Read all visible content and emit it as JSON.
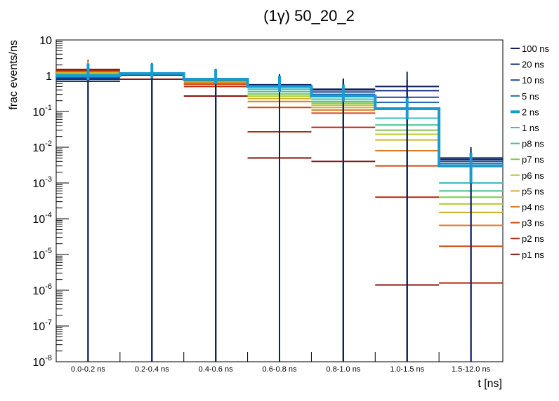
{
  "chart_data": {
    "type": "step",
    "title": "(1γ) 50_20_2",
    "xlabel": "t [ns]",
    "ylabel": "frac events/ns",
    "yscale": "log",
    "ylim": [
      1e-08,
      10
    ],
    "grid": false,
    "legend_position": "right",
    "categories": [
      "0.0-0.2 ns",
      "0.2-0.4 ns",
      "0.4-0.6 ns",
      "0.6-0.8 ns",
      "0.8-1.0 ns",
      "1.0-1.5 ns",
      "1.5-12.0 ns"
    ],
    "ytick_labels": [
      {
        "base": "10",
        "exp": "-8",
        "value": 1e-08
      },
      {
        "base": "10",
        "exp": "-7",
        "value": 1e-07
      },
      {
        "base": "10",
        "exp": "-6",
        "value": 1e-06
      },
      {
        "base": "10",
        "exp": "-5",
        "value": 1e-05
      },
      {
        "base": "10",
        "exp": "-4",
        "value": 0.0001
      },
      {
        "base": "10",
        "exp": "-3",
        "value": 0.001
      },
      {
        "base": "10",
        "exp": "-2",
        "value": 0.01
      },
      {
        "base": "10",
        "exp": "-1",
        "value": 0.1
      },
      {
        "base": "1",
        "exp": "",
        "value": 1
      },
      {
        "base": "10",
        "exp": "",
        "value": 10
      }
    ],
    "series": [
      {
        "name": "100 ns",
        "color": "#0d1f5c",
        "highlight": false,
        "values": [
          0.7,
          1.05,
          0.75,
          0.55,
          0.42,
          0.5,
          0.005
        ],
        "err_lo": [
          0.7,
          1.05,
          0.75,
          0.55,
          0.42,
          0.5,
          0.005
        ],
        "err_hi": [
          0.7,
          1.05,
          0.75,
          0.55,
          0.42,
          0.8,
          0.005
        ]
      },
      {
        "name": "20 ns",
        "color": "#0f2d7a",
        "highlight": false,
        "values": [
          0.8,
          1.08,
          0.76,
          0.55,
          0.4,
          0.38,
          0.0045
        ],
        "err_lo": [
          0.8,
          1.08,
          0.76,
          0.55,
          0.4,
          0.38,
          0.0045
        ],
        "err_hi": [
          0.8,
          1.08,
          0.76,
          0.55,
          0.4,
          0.38,
          0.0045
        ]
      },
      {
        "name": "10 ns",
        "color": "#1a4d96",
        "highlight": false,
        "values": [
          0.85,
          1.1,
          0.78,
          0.56,
          0.35,
          0.25,
          0.004
        ],
        "err_lo": [
          0.85,
          1.1,
          0.78,
          0.56,
          0.35,
          0.25,
          0.004
        ],
        "err_hi": [
          0.85,
          1.1,
          0.78,
          0.56,
          0.35,
          0.25,
          0.004
        ]
      },
      {
        "name": "5 ns",
        "color": "#1f6cb3",
        "highlight": false,
        "values": [
          0.9,
          1.12,
          0.78,
          0.5,
          0.3,
          0.18,
          0.0035
        ],
        "err_lo": [
          0.9,
          1.12,
          0.78,
          0.5,
          0.3,
          0.18,
          0.0035
        ],
        "err_hi": [
          0.9,
          1.12,
          0.78,
          0.5,
          0.3,
          0.18,
          0.0035
        ]
      },
      {
        "name": "2 ns",
        "color": "#1a9ad0",
        "highlight": true,
        "values": [
          1.0,
          1.15,
          0.8,
          0.5,
          0.27,
          0.12,
          0.003
        ],
        "err_lo": [
          0.25,
          0.3,
          0.22,
          0.15,
          0.08,
          0.06,
          0.002
        ],
        "err_hi": [
          1.2,
          1.0,
          0.7,
          0.5,
          0.3,
          0.12,
          0.004
        ]
      },
      {
        "name": "1 ns",
        "color": "#33c0c0",
        "highlight": false,
        "values": [
          1.05,
          1.15,
          0.78,
          0.42,
          0.22,
          0.065,
          0.001
        ],
        "err_lo": [
          1.05,
          1.15,
          0.78,
          0.42,
          0.22,
          0.065,
          0.001
        ],
        "err_hi": [
          1.05,
          1.15,
          0.78,
          0.42,
          0.22,
          0.065,
          0.001
        ]
      },
      {
        "name": "p8 ns",
        "color": "#3cc48e",
        "highlight": false,
        "values": [
          1.08,
          1.15,
          0.76,
          0.36,
          0.19,
          0.042,
          0.0006
        ],
        "err_lo": [
          1.08,
          1.15,
          0.76,
          0.36,
          0.19,
          0.042,
          0.0006
        ],
        "err_hi": [
          1.08,
          1.15,
          0.76,
          0.36,
          0.19,
          0.042,
          0.0006
        ]
      },
      {
        "name": "p7 ns",
        "color": "#7ccc4a",
        "highlight": false,
        "values": [
          1.12,
          1.14,
          0.74,
          0.31,
          0.17,
          0.03,
          0.0004
        ],
        "err_lo": [
          1.12,
          1.14,
          0.74,
          0.31,
          0.17,
          0.03,
          0.0004
        ],
        "err_hi": [
          1.12,
          1.14,
          0.74,
          0.31,
          0.17,
          0.03,
          0.0004
        ]
      },
      {
        "name": "p6 ns",
        "color": "#b3cc2e",
        "highlight": false,
        "values": [
          1.15,
          1.14,
          0.72,
          0.27,
          0.15,
          0.023,
          0.00026
        ],
        "err_lo": [
          1.15,
          1.14,
          0.72,
          0.27,
          0.15,
          0.023,
          0.00026
        ],
        "err_hi": [
          1.15,
          1.14,
          0.72,
          0.27,
          0.15,
          0.023,
          0.00026
        ]
      },
      {
        "name": "p5 ns",
        "color": "#d4b02a",
        "highlight": false,
        "values": [
          1.2,
          1.13,
          0.68,
          0.23,
          0.13,
          0.016,
          0.00015
        ],
        "err_lo": [
          1.2,
          1.13,
          0.68,
          0.23,
          0.13,
          0.016,
          0.00015
        ],
        "err_hi": [
          1.2,
          1.13,
          0.68,
          0.23,
          0.13,
          0.016,
          0.00015
        ]
      },
      {
        "name": "p4 ns",
        "color": "#e07a1e",
        "highlight": false,
        "values": [
          1.25,
          1.12,
          0.63,
          0.19,
          0.11,
          0.008,
          6.5e-05
        ],
        "err_lo": [
          1.25,
          1.12,
          0.63,
          0.19,
          0.11,
          0.008,
          6.5e-05
        ],
        "err_hi": [
          1.25,
          1.12,
          0.63,
          0.19,
          0.11,
          0.008,
          6.5e-05
        ]
      },
      {
        "name": "p3 ns",
        "color": "#d24a14",
        "highlight": false,
        "values": [
          1.3,
          1.1,
          0.58,
          0.13,
          0.09,
          0.003,
          1.7e-05
        ],
        "err_lo": [
          1.3,
          1.1,
          0.58,
          0.13,
          0.09,
          0.003,
          1.25e-05
        ],
        "err_hi": [
          1.3,
          1.1,
          0.58,
          0.13,
          0.09,
          0.003,
          2.3e-05
        ]
      },
      {
        "name": "p2 ns",
        "color": "#b42810",
        "highlight": false,
        "values": [
          1.4,
          1.05,
          0.5,
          0.027,
          0.036,
          0.0004,
          1.6e-06
        ],
        "err_lo": [
          1.4,
          1.05,
          0.5,
          0.027,
          0.036,
          0.00028,
          1.5e-06
        ],
        "err_hi": [
          1.4,
          1.05,
          0.5,
          0.027,
          0.036,
          0.00031,
          1.4e-06
        ]
      },
      {
        "name": "p1 ns",
        "color": "#8a1010",
        "highlight": false,
        "values": [
          1.5,
          0.8,
          0.27,
          0.005,
          0.004,
          1.4e-06,
          null
        ],
        "err_lo": [
          1.32,
          0.62,
          0.215,
          0.00478,
          0.00335,
          1.05e-06,
          null
        ],
        "err_hi": [
          1.1,
          0.85,
          0.58,
          0.024,
          0.046,
          1.1e-06,
          null
        ]
      }
    ]
  }
}
